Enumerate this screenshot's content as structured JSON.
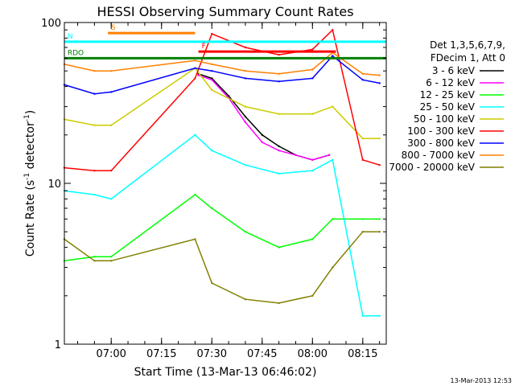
{
  "chart_data": {
    "type": "line",
    "title": "HESSI Observing Summary Count Rates",
    "xlabel": "Start Time (13-Mar-13 06:46:02)",
    "ylabel": "Count Rate (s",
    "ylabel_exp": "-1",
    "ylabel_tail": " detector",
    "ylabel_tail_exp": "-1",
    "ylabel_close": ")",
    "yscale": "log",
    "ylim": [
      1,
      100
    ],
    "xlim": [
      "06:46:02",
      "08:22:00"
    ],
    "x_ticks": [
      "07:00",
      "07:15",
      "07:30",
      "07:45",
      "08:00",
      "08:15"
    ],
    "y_ticks": [
      "1",
      "10",
      "100"
    ],
    "legend": {
      "placement": "right",
      "header_line1": "Det 1,3,5,6,7,9,",
      "header_line2": "FDecim 1, Att 0"
    },
    "timestamp": "13-Mar-2013 12:53",
    "series": [
      {
        "name": "3 - 6 keV",
        "color": "#000000",
        "x": [
          "07:26",
          "07:30",
          "07:35",
          "07:40",
          "07:45",
          "07:50",
          "07:55",
          "08:00",
          "08:05"
        ],
        "values": [
          48,
          45,
          35,
          26,
          20,
          17,
          15,
          14,
          15
        ]
      },
      {
        "name": "6 - 12 keV",
        "color": "#ff00ff",
        "x": [
          "07:26",
          "07:30",
          "07:35",
          "07:40",
          "07:45",
          "07:50",
          "07:55",
          "08:00",
          "08:05"
        ],
        "values": [
          47,
          44,
          34,
          24,
          18,
          16,
          15,
          14,
          15
        ]
      },
      {
        "name": "12 - 25 keV",
        "color": "#00ff00",
        "x": [
          "06:46",
          "06:55",
          "07:00",
          "07:25",
          "07:30",
          "07:40",
          "07:50",
          "08:00",
          "08:06",
          "08:15",
          "08:20"
        ],
        "values": [
          3.3,
          3.5,
          3.5,
          8.5,
          7,
          5,
          4,
          4.5,
          6,
          6,
          6
        ]
      },
      {
        "name": "25 - 50 keV",
        "color": "#00ffff",
        "x": [
          "06:46",
          "06:55",
          "07:00",
          "07:25",
          "07:30",
          "07:40",
          "07:50",
          "08:00",
          "08:06",
          "08:15",
          "08:20"
        ],
        "values": [
          9,
          8.5,
          8,
          20,
          16,
          13,
          11.5,
          12,
          14,
          1.5,
          1.5
        ]
      },
      {
        "name": "50 - 100 keV",
        "color": "#cccc00",
        "x": [
          "06:46",
          "06:55",
          "07:00",
          "07:25",
          "07:30",
          "07:40",
          "07:50",
          "08:00",
          "08:06",
          "08:15",
          "08:20"
        ],
        "values": [
          25,
          23,
          23,
          52,
          38,
          30,
          27,
          27,
          30,
          19,
          19
        ]
      },
      {
        "name": "100 - 300 keV",
        "color": "#ff0000",
        "x": [
          "06:46",
          "06:55",
          "07:00",
          "07:25",
          "07:30",
          "07:40",
          "07:50",
          "08:00",
          "08:06",
          "08:15",
          "08:20"
        ],
        "values": [
          12.5,
          12,
          12,
          45,
          85,
          70,
          63,
          68,
          90,
          14,
          13
        ]
      },
      {
        "name": "300 - 800 keV",
        "color": "#0000ff",
        "x": [
          "06:46",
          "06:55",
          "07:00",
          "07:25",
          "07:30",
          "07:40",
          "07:50",
          "08:00",
          "08:06",
          "08:15",
          "08:20"
        ],
        "values": [
          41,
          36,
          37,
          52,
          50,
          45,
          43,
          45,
          62,
          44,
          42
        ]
      },
      {
        "name": "800 - 7000 keV",
        "color": "#ff8000",
        "x": [
          "06:46",
          "06:55",
          "07:00",
          "07:25",
          "07:30",
          "07:40",
          "07:50",
          "08:00",
          "08:06",
          "08:15",
          "08:20"
        ],
        "values": [
          55,
          50,
          50,
          58,
          55,
          50,
          48,
          51,
          65,
          48,
          47
        ]
      },
      {
        "name": "7000 - 20000 keV",
        "color": "#808000",
        "x": [
          "06:46",
          "06:55",
          "07:00",
          "07:25",
          "07:30",
          "07:40",
          "07:50",
          "08:00",
          "08:06",
          "08:15",
          "08:20"
        ],
        "values": [
          4.5,
          3.3,
          3.3,
          4.5,
          2.4,
          1.9,
          1.8,
          2.0,
          3.0,
          5.0,
          5.0
        ]
      }
    ],
    "flag_bars": [
      {
        "label": "S",
        "color": "#ff8000",
        "x": [
          "06:59",
          "07:25"
        ],
        "y": 86
      },
      {
        "label": "N",
        "color": "#00ffff",
        "x": [
          "06:46",
          "08:22"
        ],
        "y": 76
      },
      {
        "label": "RDO",
        "color": "#008000",
        "x": [
          "06:46",
          "08:22"
        ],
        "y": 60
      },
      {
        "label": "F",
        "color": "#ff0000",
        "x": [
          "07:26",
          "08:07"
        ],
        "y": 66
      }
    ]
  }
}
